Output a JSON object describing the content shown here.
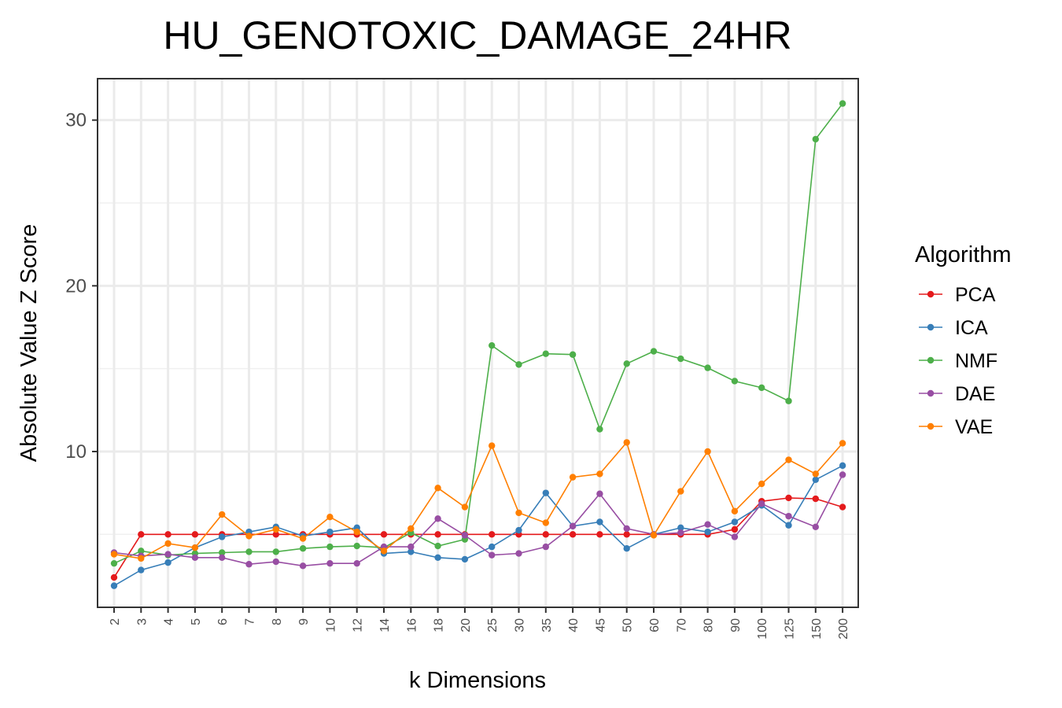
{
  "chart_data": {
    "type": "line",
    "title": "HU_GENOTOXIC_DAMAGE_24HR",
    "xlabel": "k Dimensions",
    "ylabel": "Absolute Value Z Score",
    "categories": [
      "2",
      "3",
      "4",
      "5",
      "6",
      "7",
      "8",
      "9",
      "10",
      "12",
      "14",
      "16",
      "18",
      "20",
      "25",
      "30",
      "35",
      "40",
      "45",
      "50",
      "60",
      "70",
      "80",
      "90",
      "100",
      "125",
      "150",
      "200"
    ],
    "ylim": [
      0.6,
      32.5
    ],
    "yticks": [
      10,
      20,
      30
    ],
    "ytick_labels": [
      "10",
      "20",
      "30"
    ],
    "grid": true,
    "legend_title": "Algorithm",
    "legend_position": "right",
    "series": [
      {
        "name": "PCA",
        "color": "#e41a1c",
        "values": [
          2.4,
          5.0,
          5.0,
          5.0,
          5.0,
          5.0,
          5.0,
          5.0,
          5.0,
          5.0,
          5.0,
          5.0,
          5.0,
          5.0,
          5.0,
          5.0,
          5.0,
          5.0,
          5.0,
          5.0,
          5.0,
          5.0,
          5.0,
          5.3,
          7.0,
          7.2,
          7.15,
          6.65
        ]
      },
      {
        "name": "ICA",
        "color": "#377eb8",
        "values": [
          1.9,
          2.85,
          3.3,
          4.2,
          4.85,
          5.15,
          5.45,
          4.9,
          5.15,
          5.4,
          3.85,
          3.95,
          3.6,
          3.5,
          4.25,
          5.25,
          7.5,
          5.5,
          5.75,
          4.15,
          5.0,
          5.4,
          5.15,
          5.75,
          6.75,
          5.55,
          8.3,
          9.15
        ]
      },
      {
        "name": "NMF",
        "color": "#4daf4a",
        "values": [
          3.25,
          4.0,
          3.75,
          3.85,
          3.9,
          3.95,
          3.95,
          4.15,
          4.25,
          4.3,
          4.2,
          5.1,
          4.3,
          4.7,
          16.4,
          15.25,
          15.9,
          15.85,
          11.35,
          15.3,
          16.05,
          15.6,
          15.05,
          14.25,
          13.85,
          13.05,
          28.85,
          31.0
        ]
      },
      {
        "name": "DAE",
        "color": "#984ea3",
        "values": [
          3.9,
          3.7,
          3.8,
          3.6,
          3.6,
          3.2,
          3.35,
          3.1,
          3.25,
          3.25,
          4.25,
          4.25,
          5.95,
          4.95,
          3.75,
          3.85,
          4.25,
          5.5,
          7.45,
          5.35,
          5.0,
          5.1,
          5.6,
          4.85,
          6.85,
          6.1,
          5.45,
          8.6
        ]
      },
      {
        "name": "VAE",
        "color": "#ff7f00",
        "values": [
          3.8,
          3.55,
          4.45,
          4.2,
          6.2,
          4.9,
          5.3,
          4.75,
          6.05,
          5.15,
          4.0,
          5.35,
          7.8,
          6.65,
          10.35,
          6.3,
          5.7,
          8.45,
          8.65,
          10.55,
          4.95,
          7.6,
          10.0,
          6.4,
          8.05,
          9.5,
          8.65,
          10.5
        ]
      }
    ]
  }
}
